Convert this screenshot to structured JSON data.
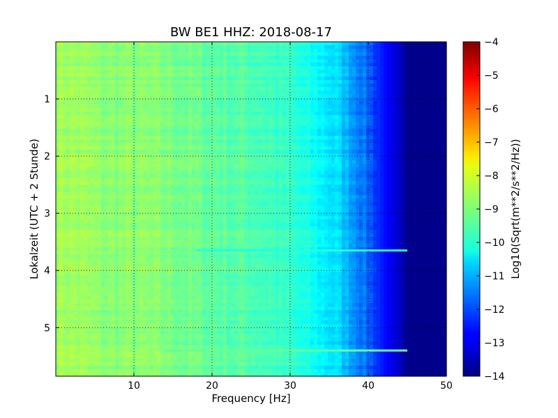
{
  "chart_data": {
    "type": "heatmap",
    "title": "BW BE1 HHZ: 2018-08-17",
    "xlabel": "Frequency [Hz]",
    "ylabel": "Lokalzeit (UTC + 2 Stunde)",
    "colorbar_label": "Log10(Sqrt(m**2/s**2/Hz))",
    "xlim": [
      0,
      50
    ],
    "ylim": [
      5.85,
      0
    ],
    "y_inverted": true,
    "x_ticks": [
      10,
      20,
      30,
      40,
      50
    ],
    "x_tick_labels": [
      "10",
      "20",
      "30",
      "40",
      "50"
    ],
    "y_ticks": [
      1,
      2,
      3,
      4,
      5
    ],
    "y_tick_labels": [
      "1",
      "2",
      "3",
      "4",
      "5"
    ],
    "colorbar_range": [
      -14,
      -4
    ],
    "colorbar_ticks": [
      -4,
      -5,
      -6,
      -7,
      -8,
      -9,
      -10,
      -11,
      -12,
      -13,
      -14
    ],
    "colorbar_tick_labels": [
      "−4",
      "−5",
      "−6",
      "−7",
      "−8",
      "−9",
      "−10",
      "−11",
      "−12",
      "−13",
      "−14"
    ],
    "colormap": "jet",
    "grid": true,
    "spectral_profile": {
      "frequency_hz": [
        0,
        3,
        6,
        10,
        14,
        20,
        26,
        30,
        33,
        36,
        38,
        40,
        42,
        44,
        45,
        50
      ],
      "log_amplitude": [
        -8.6,
        -8.7,
        -8.9,
        -8.9,
        -9.0,
        -9.3,
        -9.5,
        -9.8,
        -10.2,
        -10.6,
        -11.2,
        -11.8,
        -12.6,
        -13.3,
        -13.9,
        -13.9
      ]
    },
    "horizontal_lines": [
      {
        "time_h": 3.65,
        "freq_range": [
          18,
          45
        ],
        "log_amplitude": -9.9
      },
      {
        "time_h": 5.4,
        "freq_range": [
          14,
          45
        ],
        "log_amplitude": -9.3
      }
    ]
  },
  "colors": {
    "background": "#ffffff",
    "axis": "#000000",
    "grid": "#000000"
  }
}
